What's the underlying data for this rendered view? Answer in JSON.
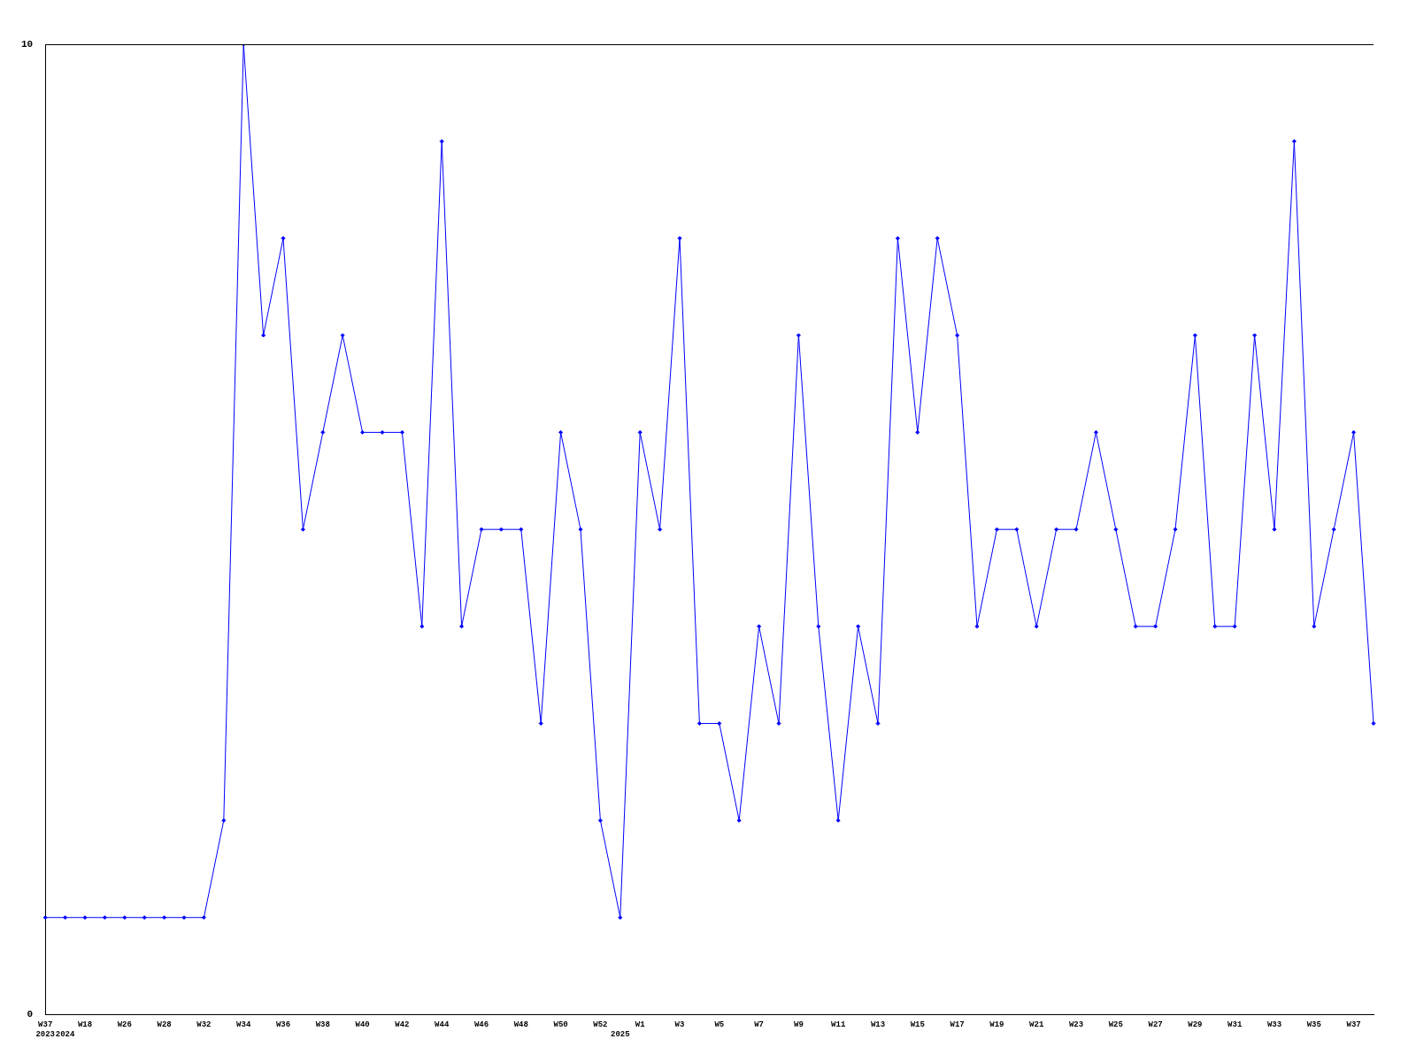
{
  "chart_data": {
    "type": "line",
    "categories": [
      "W37\n2023",
      "\n2024",
      "W18",
      null,
      "W26",
      null,
      "W28",
      null,
      "W32",
      null,
      "W34",
      null,
      "W36",
      null,
      "W38",
      null,
      "W40",
      null,
      "W42",
      null,
      "W44",
      null,
      "W46",
      null,
      "W48",
      null,
      "W50",
      null,
      "W52",
      "\n2025",
      "W1",
      null,
      "W3",
      null,
      "W5",
      null,
      "W7",
      null,
      "W9",
      null,
      "W11",
      null,
      "W13",
      null,
      "W15",
      null,
      "W17",
      null,
      "W19",
      null,
      "W21",
      null,
      "W23",
      null,
      "W25",
      null,
      "W27",
      null,
      "W29",
      null,
      "W31",
      null,
      "W33",
      null,
      "W35",
      null,
      "W37",
      null
    ],
    "series": [
      {
        "color": "#0000ff",
        "values": [
          1,
          1,
          1,
          1,
          1,
          1,
          1,
          1,
          1,
          2,
          10,
          7,
          8,
          5,
          6,
          7,
          6,
          6,
          6,
          4,
          9,
          4,
          5,
          5,
          5,
          3,
          6,
          5,
          2,
          1,
          6,
          5,
          8,
          3,
          3,
          2,
          4,
          3,
          7,
          4,
          2,
          4,
          3,
          8,
          6,
          8,
          7,
          4,
          5,
          5,
          4,
          5,
          5,
          6,
          5,
          4,
          4,
          5,
          7,
          4,
          4,
          7,
          5,
          9,
          4,
          5,
          6,
          3
        ]
      }
    ],
    "ylim": [
      0,
      10
    ],
    "yticks": [
      0,
      10
    ],
    "grid": false,
    "legend": false,
    "marker": "diamond",
    "line_style": "solid"
  }
}
